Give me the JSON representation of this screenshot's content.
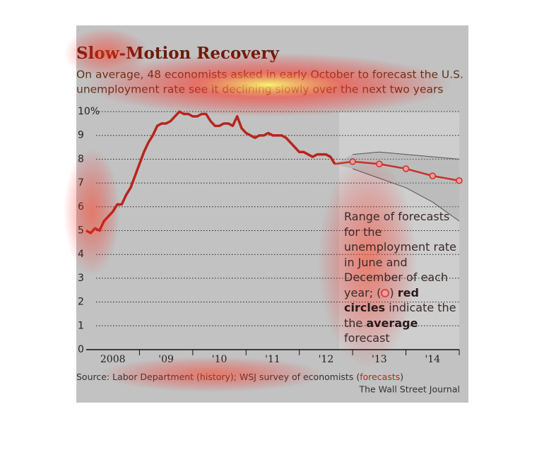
{
  "chart_data": {
    "type": "line",
    "title": "Slow-Motion Recovery",
    "subtitle": [
      "On average, 48 economists asked in early October to forecast the U.S.",
      "unemployment rate see it declining slowly over the next two years"
    ],
    "x": [
      0,
      1,
      2,
      3,
      4,
      5,
      6,
      7,
      8,
      9,
      10,
      11,
      12,
      13,
      14,
      15,
      16,
      17,
      18,
      19,
      20,
      21,
      22,
      23,
      24,
      25,
      26,
      27,
      28,
      29,
      30,
      31,
      32,
      33,
      34,
      35,
      36,
      37,
      38,
      39,
      40,
      41,
      42,
      43,
      44,
      45,
      46,
      47,
      48,
      49,
      50,
      51,
      52,
      53,
      54,
      55,
      56
    ],
    "series": [
      {
        "color": "#b8241c",
        "values": [
          5.0,
          4.9,
          5.1,
          5.0,
          5.4,
          5.6,
          5.8,
          6.1,
          6.1,
          6.5,
          6.8,
          7.3,
          7.8,
          8.3,
          8.7,
          9.0,
          9.4,
          9.5,
          9.5,
          9.6,
          9.8,
          10.0,
          9.9,
          9.9,
          9.8,
          9.8,
          9.9,
          9.9,
          9.6,
          9.4,
          9.4,
          9.5,
          9.5,
          9.4,
          9.8,
          9.3,
          9.1,
          9.0,
          8.9,
          9.0,
          9.0,
          9.1,
          9.0,
          9.0,
          9.0,
          8.9,
          8.7,
          8.5,
          8.3,
          8.3,
          8.2,
          8.1,
          8.2,
          8.2,
          8.2,
          8.1,
          7.8
        ]
      }
    ],
    "forecast": {
      "color": "#c8332a",
      "x": [
        60,
        66,
        72,
        78,
        84
      ],
      "values": [
        7.9,
        7.8,
        7.6,
        7.3,
        7.1
      ],
      "low": [
        7.6,
        7.2,
        6.8,
        6.2,
        5.4
      ],
      "high": [
        8.2,
        8.3,
        8.2,
        8.1,
        8.0
      ]
    },
    "xlim": [
      0,
      84
    ],
    "xticks": [
      {
        "value": 0,
        "label": "2008"
      },
      {
        "value": 12,
        "label": "'09"
      },
      {
        "value": 24,
        "label": "'10"
      },
      {
        "value": 36,
        "label": "'11"
      },
      {
        "value": 48,
        "label": "'12"
      },
      {
        "value": 60,
        "label": "'13"
      },
      {
        "value": 72,
        "label": "'14"
      }
    ],
    "ylim": [
      0,
      10
    ],
    "yticks": [
      0,
      1,
      2,
      3,
      4,
      5,
      6,
      7,
      8,
      9,
      {
        "value": 10,
        "label": "10%"
      }
    ],
    "grid": true,
    "annotation": [
      "Range of forecasts for the unemployment rate in June and December of each year; (",
      ") ",
      "red circles",
      " indicate the the ",
      "average",
      " forecast"
    ],
    "source": [
      "Source: Labor Department (history); WSJ survey of economists (",
      "forecasts",
      ")"
    ],
    "credit": "The Wall Street Journal"
  }
}
